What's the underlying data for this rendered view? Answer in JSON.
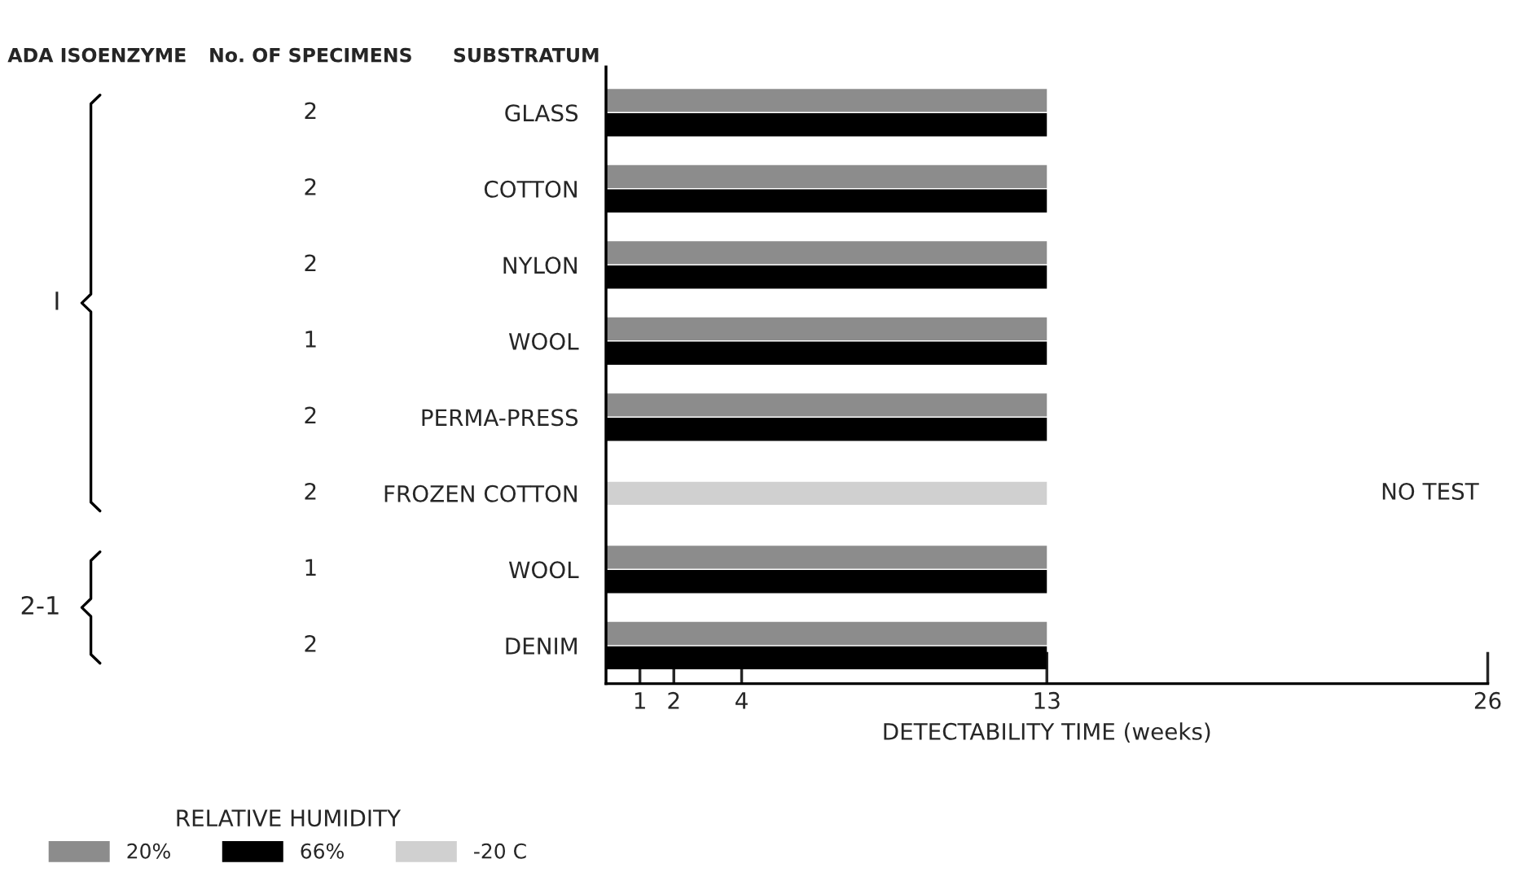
{
  "chart_data": {
    "type": "bar",
    "orientation": "horizontal",
    "xlabel": "DETECTABILITY TIME (weeks)",
    "legend_title": "RELATIVE HUMIDITY",
    "legend": "bottom left",
    "grid": false,
    "categories": [
      "GLASS",
      "COTTON",
      "NYLON",
      "WOOL",
      "PERMA-PRESS",
      "FROZEN COTTON",
      "WOOL",
      "DENIM"
    ],
    "series": [
      {
        "name": "20%",
        "color": "#8c8c8c",
        "values": [
          13,
          13,
          13,
          13,
          13,
          null,
          13,
          13
        ]
      },
      {
        "name": "66%",
        "color": "#000000",
        "values": [
          13,
          13,
          13,
          13,
          13,
          null,
          13,
          13
        ]
      },
      {
        "name": "-20 C",
        "color": "#d0d0d0",
        "values": [
          null,
          null,
          null,
          null,
          null,
          13,
          null,
          null
        ]
      }
    ],
    "xlim": [
      0,
      26
    ],
    "xticks": [
      1,
      2,
      4,
      13,
      26
    ],
    "annotations": [
      "ADA ISOENZYME",
      "SUBSTRATUM",
      "No. OF SPECIMENS",
      "I",
      "2-1",
      "2",
      "2",
      "2",
      "1",
      "2",
      "2",
      "1",
      "2",
      "NO TEST"
    ]
  }
}
